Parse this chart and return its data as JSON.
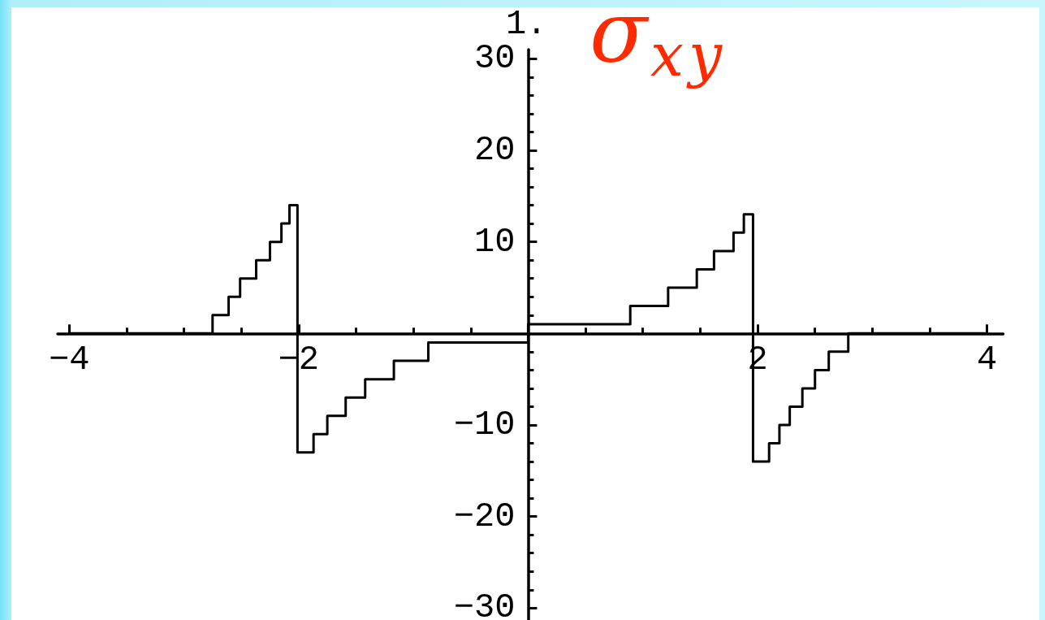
{
  "chart_data": {
    "type": "step",
    "title": "σ$_{xy}$",
    "annotations": [
      "1."
    ],
    "x": [
      -4,
      -2.75,
      -2.61,
      -2.51,
      -2.37,
      -2.25,
      -2.15,
      -2.08,
      -2.01,
      -1.87,
      -1.75,
      -1.59,
      -1.42,
      -1.17,
      -0.87,
      0,
      0.89,
      1.22,
      1.47,
      1.62,
      1.79,
      1.88,
      1.96,
      2.1,
      2.19,
      2.28,
      2.39,
      2.5,
      2.62,
      2.79,
      4
    ],
    "series": [
      {
        "color": "#000000",
        "values": [
          0,
          2,
          4,
          6,
          8,
          10,
          12,
          14,
          -13,
          -11,
          -9,
          -7,
          -5,
          -3,
          -1,
          1,
          3,
          5,
          7,
          9,
          11,
          13,
          -14,
          -12,
          -10,
          -8,
          -6,
          -4,
          -2,
          0,
          0
        ]
      }
    ],
    "xlim": [
      -4.1,
      4.14
    ],
    "ylim": [
      -31.3,
      31
    ],
    "xticks": [
      {
        "value": -4,
        "label": "−4"
      },
      {
        "value": -3.5,
        "label": null
      },
      {
        "value": -3,
        "label": null
      },
      {
        "value": -2.5,
        "label": null
      },
      {
        "value": -2,
        "label": "−2"
      },
      {
        "value": -1.5,
        "label": null
      },
      {
        "value": -1,
        "label": null
      },
      {
        "value": -0.5,
        "label": null
      },
      {
        "value": 0.5,
        "label": null
      },
      {
        "value": 1,
        "label": null
      },
      {
        "value": 1.5,
        "label": null
      },
      2,
      {
        "value": 2.5,
        "label": null
      },
      {
        "value": 3,
        "label": null
      },
      {
        "value": 3.5,
        "label": null
      },
      4
    ],
    "yticks": [
      {
        "value": -30,
        "label": "−30"
      },
      {
        "value": -28,
        "label": null
      },
      {
        "value": -26,
        "label": null
      },
      {
        "value": -24,
        "label": null
      },
      {
        "value": -22,
        "label": null
      },
      {
        "value": -20,
        "label": "−20"
      },
      {
        "value": -18,
        "label": null
      },
      {
        "value": -16,
        "label": null
      },
      {
        "value": -14,
        "label": null
      },
      {
        "value": -12,
        "label": null
      },
      {
        "value": -10,
        "label": "−10"
      },
      {
        "value": -8,
        "label": null
      },
      {
        "value": -6,
        "label": null
      },
      {
        "value": -4,
        "label": null
      },
      {
        "value": -2,
        "label": null
      },
      {
        "value": 2,
        "label": null
      },
      {
        "value": 4,
        "label": null
      },
      {
        "value": 6,
        "label": null
      },
      {
        "value": 8,
        "label": null
      },
      10,
      {
        "value": 12,
        "label": null
      },
      {
        "value": 14,
        "label": null
      },
      {
        "value": 16,
        "label": null
      },
      {
        "value": 18,
        "label": null
      },
      20,
      {
        "value": 22,
        "label": null
      },
      {
        "value": 24,
        "label": null
      },
      {
        "value": 26,
        "label": null
      },
      {
        "value": 28,
        "label": null
      },
      30
    ],
    "grid": false,
    "marker": "none",
    "line_style": "solid"
  }
}
